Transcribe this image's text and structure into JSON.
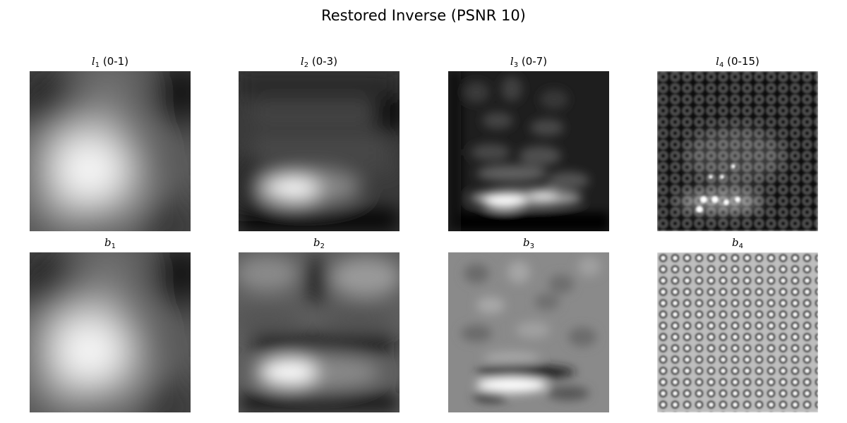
{
  "figure": {
    "title": "Restored Inverse (PSNR 10)"
  },
  "panels": [
    {
      "row": 1,
      "col": 1,
      "symbol": "l",
      "index": "1",
      "suffix": " (0-1)",
      "level": 1
    },
    {
      "row": 1,
      "col": 2,
      "symbol": "l",
      "index": "2",
      "suffix": " (0-3)",
      "level": 2
    },
    {
      "row": 1,
      "col": 3,
      "symbol": "l",
      "index": "3",
      "suffix": " (0-7)",
      "level": 3
    },
    {
      "row": 1,
      "col": 4,
      "symbol": "l",
      "index": "4",
      "suffix": " (0-15)",
      "level": 4
    },
    {
      "row": 2,
      "col": 1,
      "symbol": "b",
      "index": "1",
      "suffix": "",
      "level": 1
    },
    {
      "row": 2,
      "col": 2,
      "symbol": "b",
      "index": "2",
      "suffix": "",
      "level": 2
    },
    {
      "row": 2,
      "col": 3,
      "symbol": "b",
      "index": "3",
      "suffix": "",
      "level": 3
    },
    {
      "row": 2,
      "col": 4,
      "symbol": "b",
      "index": "4",
      "suffix": "",
      "level": 4
    }
  ],
  "colormap": "grayscale"
}
